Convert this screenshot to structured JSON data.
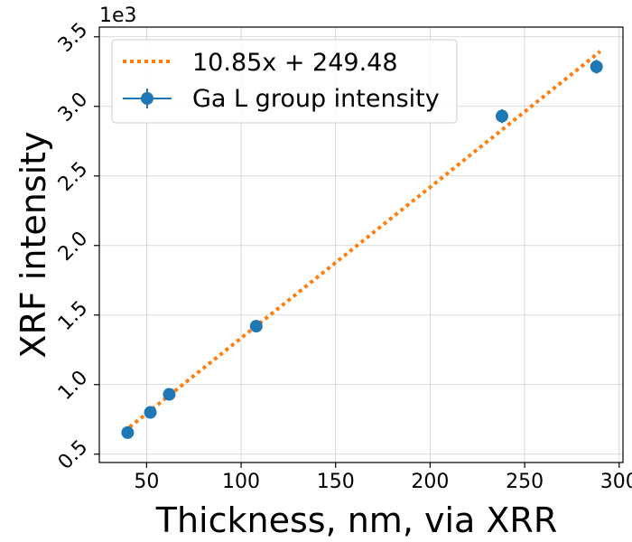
{
  "chart_data": {
    "type": "scatter",
    "xlabel": "Thickness, nm, via XRR",
    "ylabel": "XRF intensity",
    "y_offset_text": "1e3",
    "xlim": [
      25,
      302
    ],
    "ylim": [
      0.44,
      3.57
    ],
    "x_ticks": [
      50,
      100,
      150,
      200,
      250,
      300
    ],
    "x_tick_labels": [
      "50",
      "100",
      "150",
      "200",
      "250",
      "300"
    ],
    "y_ticks": [
      0.5,
      1.0,
      1.5,
      2.0,
      2.5,
      3.0,
      3.5
    ],
    "y_tick_labels": [
      "0.5",
      "1.0",
      "1.5",
      "2.0",
      "2.5",
      "3.0",
      "3.5"
    ],
    "grid": true,
    "legend_position": "upper-left",
    "series": [
      {
        "name": "10.85x + 249.48",
        "kind": "fit-line",
        "style": "dotted",
        "color": "#ff7f0e",
        "slope": 10.85,
        "intercept": 249.48,
        "x_range": [
          38,
          290
        ]
      },
      {
        "name": "Ga L group intensity",
        "kind": "errorbar-scatter",
        "color": "#1f77b4",
        "x": [
          40,
          52,
          62,
          108,
          238,
          288
        ],
        "y": [
          0.655,
          0.8,
          0.93,
          1.42,
          2.93,
          3.285
        ],
        "y_err": [
          0.02,
          0.02,
          0.02,
          0.04,
          0.05,
          0.05
        ]
      }
    ]
  }
}
